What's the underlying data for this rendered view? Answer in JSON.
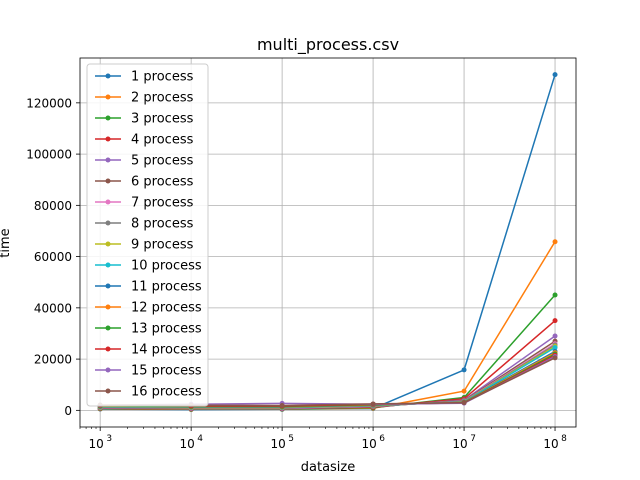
{
  "chart_data": {
    "type": "line",
    "title": "multi_process.csv",
    "xlabel": "datasize",
    "ylabel": "time",
    "xscale": "log",
    "grid": true,
    "legend_position": "upper-left",
    "xlim": [
      600,
      170000000
    ],
    "ylim": [
      -6500,
      137500
    ],
    "x": [
      1000,
      10000,
      100000,
      1000000,
      10000000,
      100000000
    ],
    "x_tick_labels": [
      {
        "base": "10",
        "exp": "3"
      },
      {
        "base": "10",
        "exp": "4"
      },
      {
        "base": "10",
        "exp": "5"
      },
      {
        "base": "10",
        "exp": "6"
      },
      {
        "base": "10",
        "exp": "7"
      },
      {
        "base": "10",
        "exp": "8"
      }
    ],
    "y_ticks": [
      0,
      20000,
      40000,
      60000,
      80000,
      100000,
      120000
    ],
    "y_tick_labels": [
      "0",
      "20000",
      "40000",
      "60000",
      "80000",
      "100000",
      "120000"
    ],
    "series": [
      {
        "name": "1 process",
        "color": "#1f77b4",
        "values": [
          500,
          300,
          400,
          700,
          15800,
          131000
        ]
      },
      {
        "name": "2 process",
        "color": "#ff7f0e",
        "values": [
          600,
          400,
          500,
          800,
          7500,
          65800
        ]
      },
      {
        "name": "3 process",
        "color": "#2ca02c",
        "values": [
          700,
          500,
          500,
          1000,
          5000,
          45000
        ]
      },
      {
        "name": "4 process",
        "color": "#d62728",
        "values": [
          800,
          600,
          600,
          1200,
          4500,
          35000
        ]
      },
      {
        "name": "5 process",
        "color": "#9467bd",
        "values": [
          900,
          700,
          700,
          1400,
          4000,
          29000
        ]
      },
      {
        "name": "6 process",
        "color": "#8c564b",
        "values": [
          1000,
          800,
          800,
          1500,
          3800,
          27000
        ]
      },
      {
        "name": "7 process",
        "color": "#e377c2",
        "values": [
          1100,
          900,
          900,
          1600,
          3600,
          26000
        ]
      },
      {
        "name": "8 process",
        "color": "#7f7f7f",
        "values": [
          1200,
          1000,
          1000,
          1700,
          3500,
          25500
        ]
      },
      {
        "name": "9 process",
        "color": "#bcbd22",
        "values": [
          1300,
          1100,
          1100,
          1800,
          3400,
          25000
        ]
      },
      {
        "name": "10 process",
        "color": "#17becf",
        "values": [
          1400,
          1200,
          1200,
          1900,
          3300,
          24500
        ]
      },
      {
        "name": "11 process",
        "color": "#1f77b4",
        "values": [
          1500,
          1300,
          1300,
          2000,
          3200,
          23000
        ]
      },
      {
        "name": "12 process",
        "color": "#ff7f0e",
        "values": [
          1600,
          1400,
          1400,
          2100,
          3100,
          22500
        ]
      },
      {
        "name": "13 process",
        "color": "#2ca02c",
        "values": [
          1700,
          1500,
          1500,
          2200,
          3000,
          22000
        ]
      },
      {
        "name": "14 process",
        "color": "#d62728",
        "values": [
          1900,
          1700,
          1700,
          2300,
          2900,
          21500
        ]
      },
      {
        "name": "15 process",
        "color": "#9467bd",
        "values": [
          2000,
          2400,
          2700,
          2400,
          2800,
          21000
        ]
      },
      {
        "name": "16 process",
        "color": "#8c564b",
        "values": [
          2100,
          2000,
          1900,
          2500,
          3000,
          20500
        ]
      }
    ]
  }
}
